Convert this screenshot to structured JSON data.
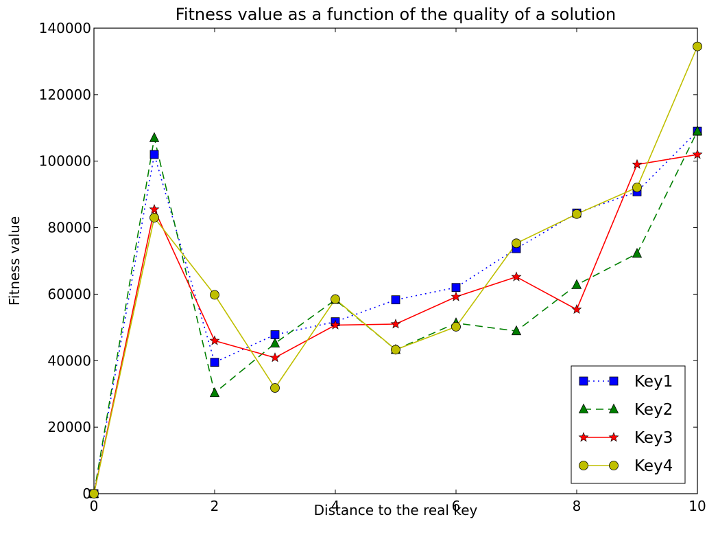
{
  "chart_data": {
    "type": "line",
    "title": "Fitness value as a function of the quality of a solution",
    "xlabel": "Distance to the real key",
    "ylabel": "Fitness value",
    "xlim": [
      0,
      10
    ],
    "ylim": [
      0,
      140000
    ],
    "x_ticks": [
      0,
      2,
      4,
      6,
      8,
      10
    ],
    "y_ticks": [
      0,
      20000,
      40000,
      60000,
      80000,
      100000,
      120000,
      140000
    ],
    "x_tick_labels": [
      "0",
      "2",
      "4",
      "6",
      "8",
      "10"
    ],
    "y_tick_labels": [
      "0",
      "20000",
      "40000",
      "60000",
      "80000",
      "100000",
      "120000",
      "140000"
    ],
    "grid": false,
    "legend_position": "bottom-right",
    "x": [
      0,
      1,
      2,
      3,
      4,
      5,
      6,
      7,
      8,
      9,
      10
    ],
    "series": [
      {
        "name": "Key1",
        "color": "#0000ff",
        "line_style": "dotted",
        "marker": "square",
        "values": [
          0,
          102000,
          39500,
          47800,
          51700,
          58300,
          62000,
          73700,
          84400,
          90800,
          109000
        ]
      },
      {
        "name": "Key2",
        "color": "#007f00",
        "line_style": "dashed",
        "marker": "triangle",
        "values": [
          0,
          107000,
          30300,
          45200,
          58300,
          43300,
          51300,
          48900,
          62800,
          72200,
          109000
        ]
      },
      {
        "name": "Key3",
        "color": "#ff0000",
        "line_style": "solid",
        "marker": "star",
        "values": [
          0,
          85500,
          46000,
          40900,
          50700,
          51000,
          59200,
          65200,
          55400,
          99000,
          102000
        ]
      },
      {
        "name": "Key4",
        "color": "#bfbf00",
        "line_style": "solid",
        "marker": "circle",
        "values": [
          0,
          83000,
          59800,
          31800,
          58500,
          43300,
          50200,
          75300,
          84100,
          92100,
          134500
        ]
      }
    ]
  }
}
